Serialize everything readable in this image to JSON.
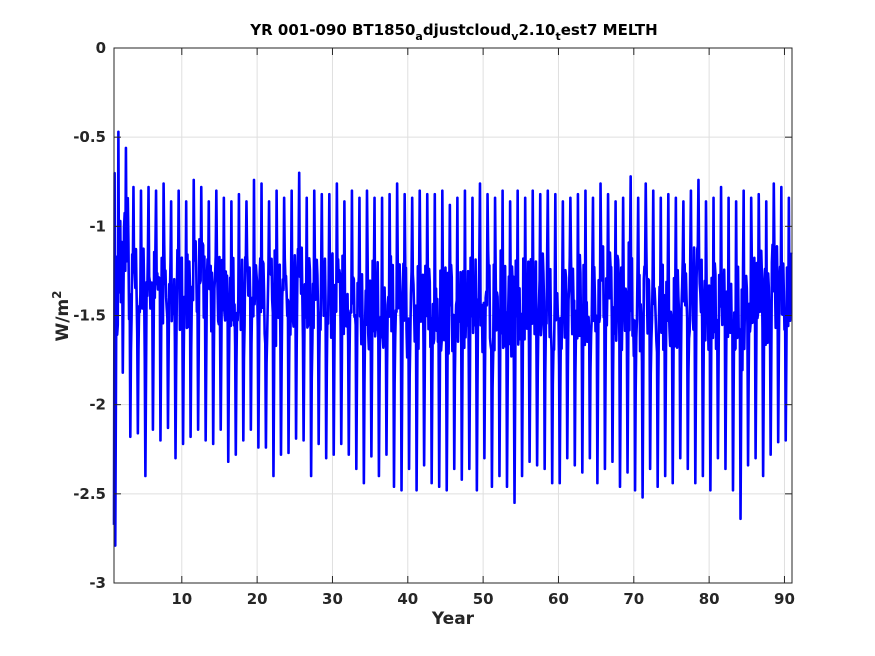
{
  "chart_data": {
    "type": "line",
    "title": {
      "pre": "YR 001-090 BT1850",
      "sub1": "a",
      "mid1": "djustcloud",
      "sub2": "v",
      "mid2": "2.10",
      "sub3": "t",
      "post": "est7 MELTH"
    },
    "xlabel": "Year",
    "ylabel": {
      "base": "W/m",
      "sup": "2"
    },
    "xlim": [
      1,
      91
    ],
    "ylim": [
      -3,
      0
    ],
    "xticks": [
      10,
      20,
      30,
      40,
      50,
      60,
      70,
      80,
      90
    ],
    "xtick_labels": [
      "10",
      "20",
      "30",
      "40",
      "50",
      "60",
      "70",
      "80",
      "90"
    ],
    "yticks": [
      0,
      -0.5,
      -1,
      -1.5,
      -2,
      -2.5,
      -3
    ],
    "ytick_labels": [
      "0",
      "-0.5",
      "-1",
      "-1.5",
      "-2",
      "-2.5",
      "-3"
    ],
    "grid": true,
    "line_color": "#0000ff",
    "series": [
      {
        "kind": "annual_cycle_envelope",
        "x": [
          1,
          2,
          3,
          4,
          5,
          6,
          7,
          8,
          9,
          10,
          11,
          12,
          13,
          14,
          15,
          16,
          17,
          18,
          19,
          20,
          21,
          22,
          23,
          24,
          25,
          26,
          27,
          28,
          29,
          30,
          31,
          32,
          33,
          34,
          35,
          36,
          37,
          38,
          39,
          40,
          41,
          42,
          43,
          44,
          45,
          46,
          47,
          48,
          49,
          50,
          51,
          52,
          53,
          54,
          55,
          56,
          57,
          58,
          59,
          60,
          61,
          62,
          63,
          64,
          65,
          66,
          67,
          68,
          69,
          70,
          71,
          72,
          73,
          74,
          75,
          76,
          77,
          78,
          79,
          80,
          81,
          82,
          83,
          84,
          85,
          86,
          87,
          88,
          89,
          90
        ],
        "max": [
          -0.47,
          -0.56,
          -0.78,
          -0.8,
          -0.78,
          -0.8,
          -0.76,
          -0.86,
          -0.8,
          -0.86,
          -0.74,
          -0.78,
          -0.86,
          -0.8,
          -0.84,
          -0.86,
          -0.82,
          -0.86,
          -0.74,
          -0.76,
          -0.86,
          -0.8,
          -0.84,
          -0.8,
          -0.7,
          -0.84,
          -0.8,
          -0.82,
          -0.82,
          -0.76,
          -0.86,
          -0.8,
          -0.84,
          -0.8,
          -0.84,
          -0.84,
          -0.82,
          -0.76,
          -0.82,
          -0.84,
          -0.8,
          -0.82,
          -0.82,
          -0.8,
          -0.88,
          -0.84,
          -0.8,
          -0.84,
          -0.76,
          -0.82,
          -0.84,
          -0.8,
          -0.86,
          -0.8,
          -0.84,
          -0.8,
          -0.82,
          -0.8,
          -0.82,
          -0.86,
          -0.84,
          -0.82,
          -0.8,
          -0.84,
          -0.76,
          -0.82,
          -0.86,
          -0.84,
          -0.72,
          -0.84,
          -0.76,
          -0.8,
          -0.84,
          -0.82,
          -0.84,
          -0.86,
          -0.8,
          -0.74,
          -0.86,
          -0.84,
          -0.78,
          -0.84,
          -0.86,
          -0.8,
          -0.84,
          -0.82,
          -0.86,
          -0.76,
          -0.78,
          -0.84
        ],
        "min": [
          -2.79,
          -1.82,
          -2.18,
          -2.16,
          -2.4,
          -2.14,
          -2.2,
          -2.13,
          -2.3,
          -2.22,
          -2.18,
          -2.14,
          -2.2,
          -2.22,
          -2.14,
          -2.32,
          -2.28,
          -2.2,
          -2.14,
          -2.24,
          -2.24,
          -2.4,
          -2.28,
          -2.27,
          -2.19,
          -2.2,
          -2.4,
          -2.22,
          -2.3,
          -2.28,
          -2.22,
          -2.28,
          -2.36,
          -2.44,
          -2.29,
          -2.4,
          -2.28,
          -2.46,
          -2.48,
          -2.36,
          -2.48,
          -2.34,
          -2.44,
          -2.46,
          -2.48,
          -2.36,
          -2.42,
          -2.36,
          -2.48,
          -2.3,
          -2.46,
          -2.4,
          -2.46,
          -2.55,
          -2.4,
          -2.32,
          -2.34,
          -2.36,
          -2.44,
          -2.44,
          -2.3,
          -2.34,
          -2.38,
          -2.3,
          -2.44,
          -2.36,
          -2.32,
          -2.46,
          -2.38,
          -2.48,
          -2.52,
          -2.36,
          -2.46,
          -2.4,
          -2.44,
          -2.3,
          -2.36,
          -2.44,
          -2.4,
          -2.48,
          -2.3,
          -2.36,
          -2.48,
          -2.64,
          -2.34,
          -2.3,
          -2.4,
          -2.28,
          -2.21,
          -2.2
        ]
      }
    ]
  }
}
